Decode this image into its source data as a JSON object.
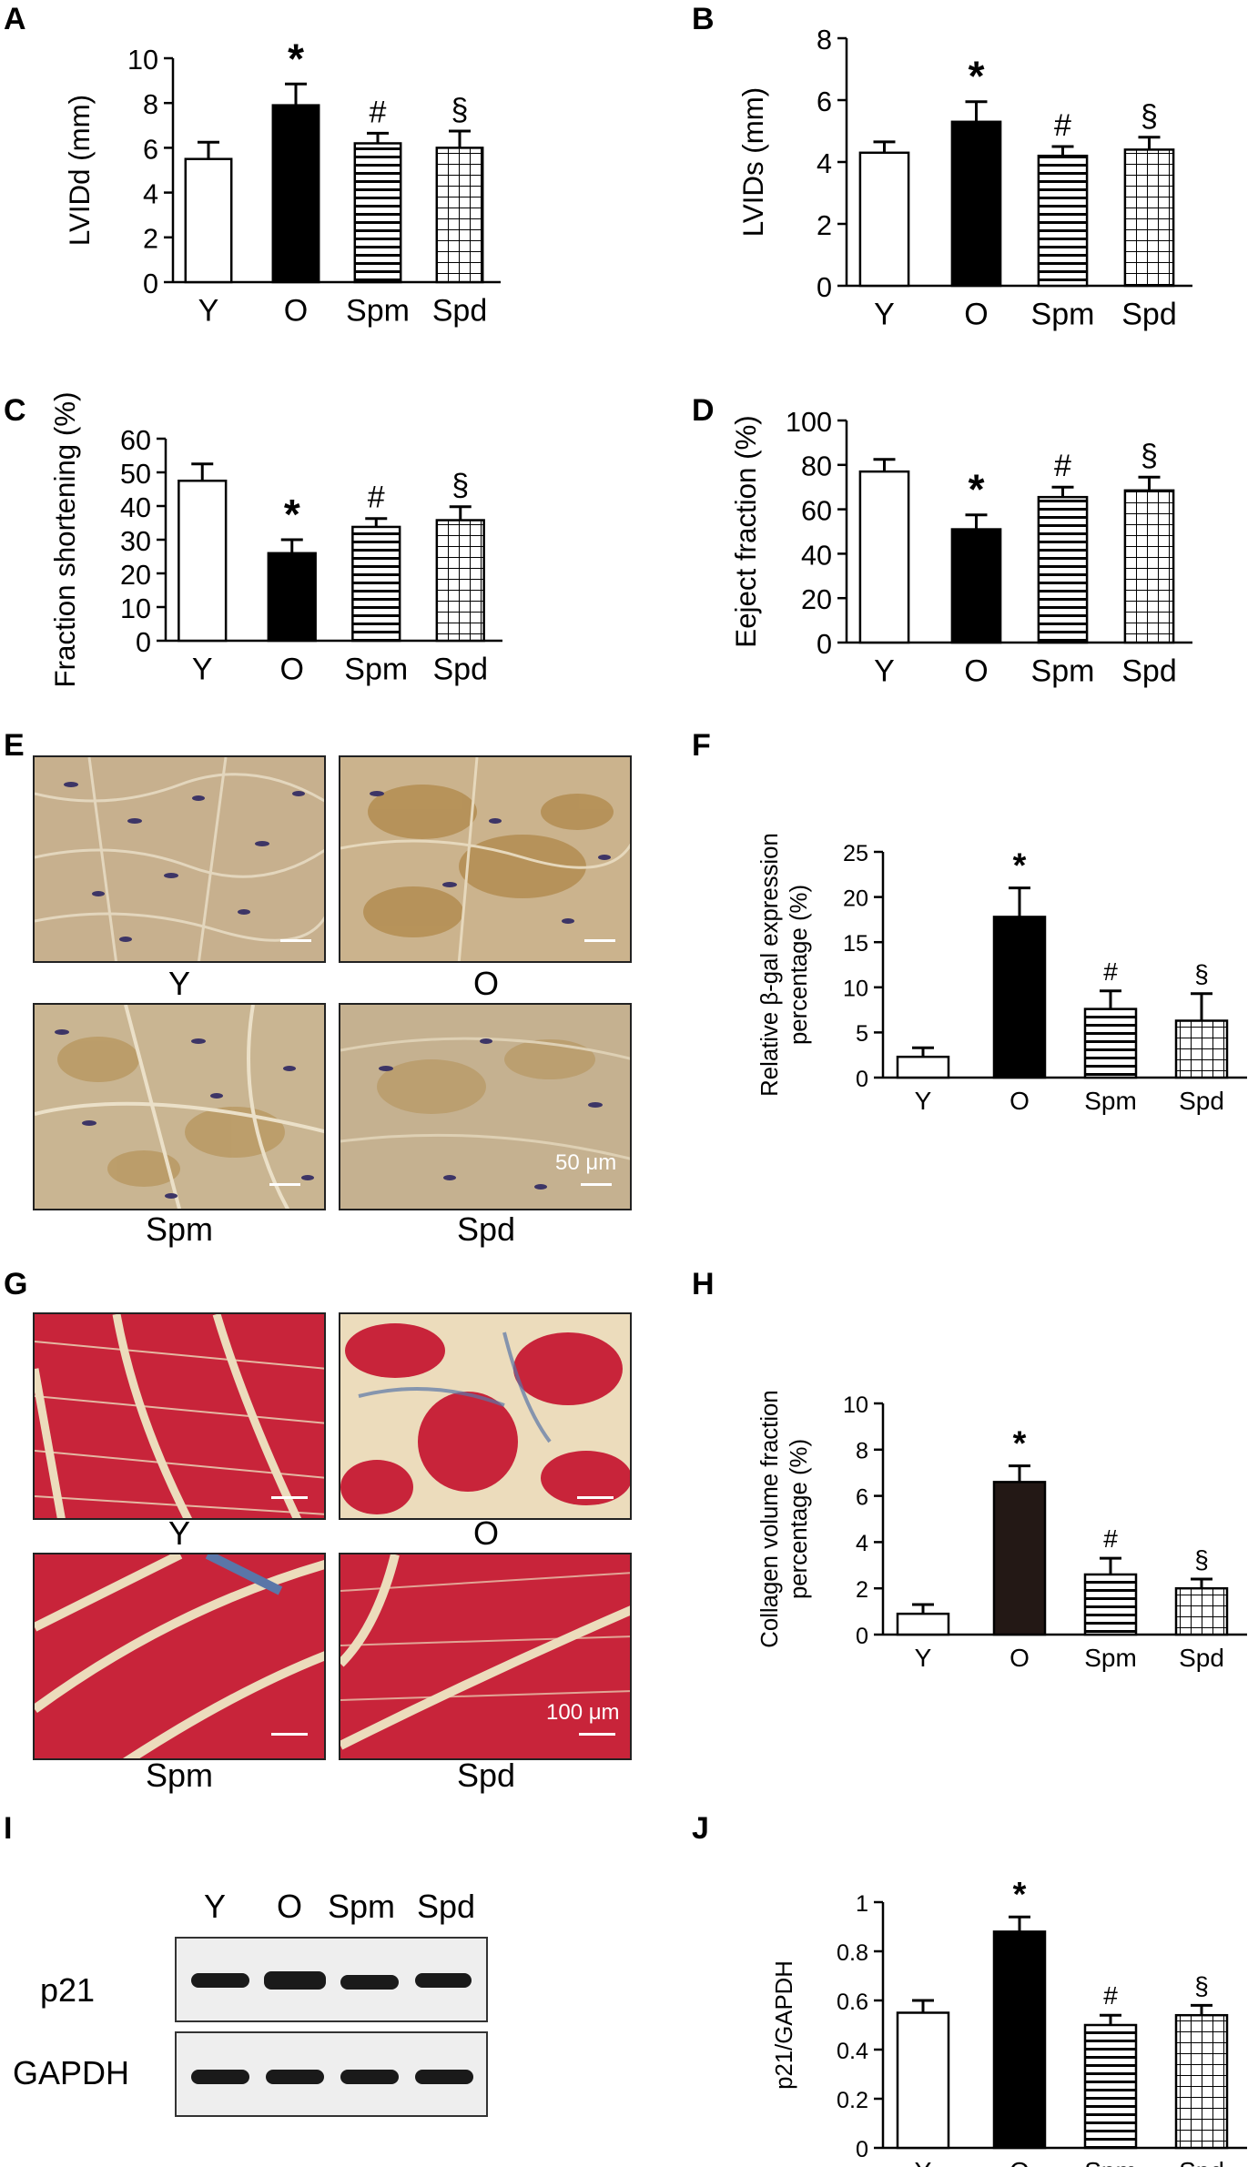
{
  "panels": [
    "A",
    "B",
    "C",
    "D",
    "E",
    "F",
    "G",
    "H",
    "I",
    "J"
  ],
  "groups": [
    "Y",
    "O",
    "Spm",
    "Spd"
  ],
  "chart_data": [
    {
      "id": "A",
      "type": "bar",
      "categories": [
        "Y",
        "O",
        "Spm",
        "Spd"
      ],
      "values": [
        5.5,
        7.9,
        6.2,
        6.0
      ],
      "errors": [
        0.75,
        0.95,
        0.45,
        0.75
      ],
      "ylabel": "LVIDd  (mm)",
      "ylim": [
        0,
        10
      ],
      "yticks": [
        "0",
        "2",
        "4",
        "6",
        "8",
        "10"
      ],
      "annotations": [
        "",
        "*",
        "#",
        "§"
      ]
    },
    {
      "id": "B",
      "type": "bar",
      "categories": [
        "Y",
        "O",
        "Spm",
        "Spd"
      ],
      "values": [
        4.3,
        5.3,
        4.2,
        4.4
      ],
      "errors": [
        0.35,
        0.65,
        0.3,
        0.4
      ],
      "ylabel": "LVIDs  (mm)",
      "ylim": [
        0,
        8
      ],
      "yticks": [
        "0",
        "2",
        "4",
        "6",
        "8"
      ],
      "annotations": [
        "",
        "*",
        "#",
        "§"
      ]
    },
    {
      "id": "C",
      "type": "bar",
      "categories": [
        "Y",
        "O",
        "Spm",
        "Spd"
      ],
      "values": [
        47.5,
        26,
        33.8,
        35.8
      ],
      "errors": [
        5,
        4,
        2.5,
        4
      ],
      "ylabel": "Fraction shortening  (%)",
      "ylim": [
        0,
        60
      ],
      "yticks": [
        "0",
        "10",
        "20",
        "30",
        "40",
        "50",
        "60"
      ],
      "annotations": [
        "",
        "*",
        "#",
        "§"
      ]
    },
    {
      "id": "D",
      "type": "bar",
      "categories": [
        "Y",
        "O",
        "Spm",
        "Spd"
      ],
      "values": [
        77,
        51,
        65.5,
        68.5
      ],
      "errors": [
        5.5,
        6.5,
        4.5,
        6
      ],
      "ylabel": "Eeject fraction  (%)",
      "ylim": [
        0,
        100
      ],
      "yticks": [
        "0",
        "20",
        "40",
        "60",
        "80",
        "100"
      ],
      "annotations": [
        "",
        "*",
        "#",
        "§"
      ]
    },
    {
      "id": "F",
      "type": "bar",
      "categories": [
        "Y",
        "O",
        "Spm",
        "Spd"
      ],
      "values": [
        2.3,
        17.8,
        7.6,
        6.3
      ],
      "errors": [
        1.0,
        3.2,
        2.0,
        3.0
      ],
      "ylabel": "Relative β-gal expression\npercentage (%)",
      "ylim": [
        0,
        25
      ],
      "yticks": [
        "0",
        "5",
        "10",
        "15",
        "20",
        "25"
      ],
      "annotations": [
        "",
        "*",
        "#",
        "§"
      ]
    },
    {
      "id": "H",
      "type": "bar",
      "categories": [
        "Y",
        "O",
        "Spm",
        "Spd"
      ],
      "values": [
        0.9,
        6.6,
        2.6,
        2.0
      ],
      "errors": [
        0.4,
        0.7,
        0.7,
        0.4
      ],
      "ylabel": "Collagen volume fraction\npercentage (%)",
      "ylim": [
        0,
        10
      ],
      "yticks": [
        "0",
        "2",
        "4",
        "6",
        "8",
        "10"
      ],
      "annotations": [
        "",
        "*",
        "#",
        "§"
      ]
    },
    {
      "id": "J",
      "type": "bar",
      "categories": [
        "Y",
        "O",
        "Spm",
        "Spd"
      ],
      "values": [
        0.55,
        0.88,
        0.5,
        0.54
      ],
      "errors": [
        0.05,
        0.06,
        0.04,
        0.04
      ],
      "ylabel": "p21/GAPDH",
      "ylim": [
        0,
        1
      ],
      "yticks": [
        "0",
        "0.2",
        "0.4",
        "0.6",
        "0.8",
        "1"
      ],
      "annotations": [
        "",
        "*",
        "#",
        "§"
      ]
    }
  ],
  "micrographs_E": {
    "labels": [
      "Y",
      "O",
      "Spm",
      "Spd"
    ],
    "scale": "50 μm",
    "colors": {
      "base": "#c9b593",
      "stain": "#b08a4a",
      "nuclei": "#3d3566"
    }
  },
  "micrographs_G": {
    "labels": [
      "Y",
      "O",
      "Spm",
      "Spd"
    ],
    "scale": "100 μm",
    "colors": {
      "base": "#c8243a",
      "stroma": "#ecdcbc",
      "collagen": "#5a76a8"
    }
  },
  "blot_I": {
    "lanes": [
      "Y",
      "O",
      "Spm",
      "Spd"
    ],
    "rows": [
      "p21",
      "GAPDH"
    ]
  },
  "bar_styles": {
    "Y": "white",
    "O": "black",
    "Spm": "horizontal-stripes",
    "Spd": "grid"
  }
}
